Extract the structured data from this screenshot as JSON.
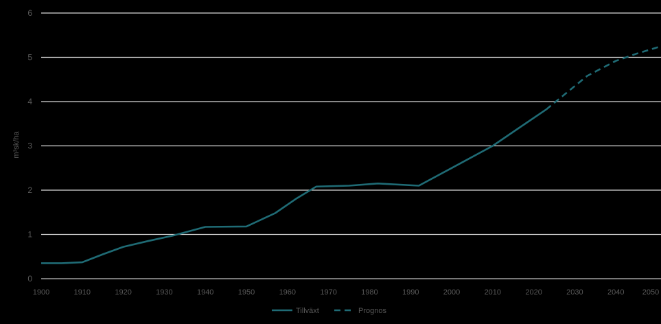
{
  "chart_data": {
    "type": "line",
    "title": "",
    "xlabel": "",
    "ylabel": "m³sk/ha",
    "xlim": [
      1900,
      2051
    ],
    "ylim": [
      0,
      6
    ],
    "x_ticks": [
      1900,
      1910,
      1920,
      1930,
      1940,
      1950,
      1960,
      1970,
      1980,
      1990,
      2000,
      2010,
      2020,
      2030,
      2040,
      2050
    ],
    "y_ticks": [
      0,
      1,
      2,
      3,
      4,
      5,
      6
    ],
    "grid": true,
    "legend": "bottom-center",
    "colors": {
      "background": "#000000",
      "series": "#1f6b75",
      "grid": "#d9d9d9",
      "text": "#595959"
    },
    "series": [
      {
        "name": "Tillväxt",
        "style": "solid",
        "points": [
          [
            1900,
            0.35
          ],
          [
            1905,
            0.35
          ],
          [
            1910,
            0.37
          ],
          [
            1915,
            0.55
          ],
          [
            1920,
            0.72
          ],
          [
            1926,
            0.85
          ],
          [
            1932,
            0.97
          ],
          [
            1940,
            1.17
          ],
          [
            1950,
            1.18
          ],
          [
            1957,
            1.48
          ],
          [
            1962,
            1.8
          ],
          [
            1967,
            2.08
          ],
          [
            1975,
            2.1
          ],
          [
            1982,
            2.15
          ],
          [
            1992,
            2.1
          ],
          [
            2000,
            2.5
          ],
          [
            2010,
            3.0
          ],
          [
            2016,
            3.38
          ],
          [
            2023,
            3.82
          ]
        ]
      },
      {
        "name": "Prognos",
        "style": "dashed",
        "points": [
          [
            2023,
            3.82
          ],
          [
            2028,
            4.2
          ],
          [
            2033,
            4.58
          ],
          [
            2040,
            4.92
          ],
          [
            2045,
            5.08
          ],
          [
            2051,
            5.25
          ]
        ]
      }
    ]
  }
}
